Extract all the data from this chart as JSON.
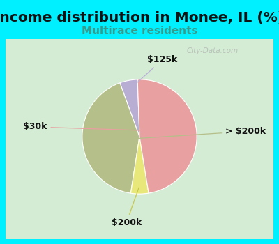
{
  "title": "Income distribution in Monee, IL (%)",
  "subtitle": "Multirace residents",
  "watermark": "City-Data.com",
  "slices": [
    {
      "label": "$125k",
      "size": 5,
      "color": "#b8aed4"
    },
    {
      "label": "> $200k",
      "size": 42,
      "color": "#b5bf8a"
    },
    {
      "label": "$200k",
      "size": 5,
      "color": "#e8e87a"
    },
    {
      "label": "$30k",
      "size": 48,
      "color": "#e8a0a0"
    }
  ],
  "background_outer": "#00f0ff",
  "background_inner": "#d4ecd4",
  "title_fontsize": 14.5,
  "subtitle_fontsize": 11,
  "subtitle_color": "#3a9a8a",
  "startangle": 92,
  "label_fontsize": 9
}
